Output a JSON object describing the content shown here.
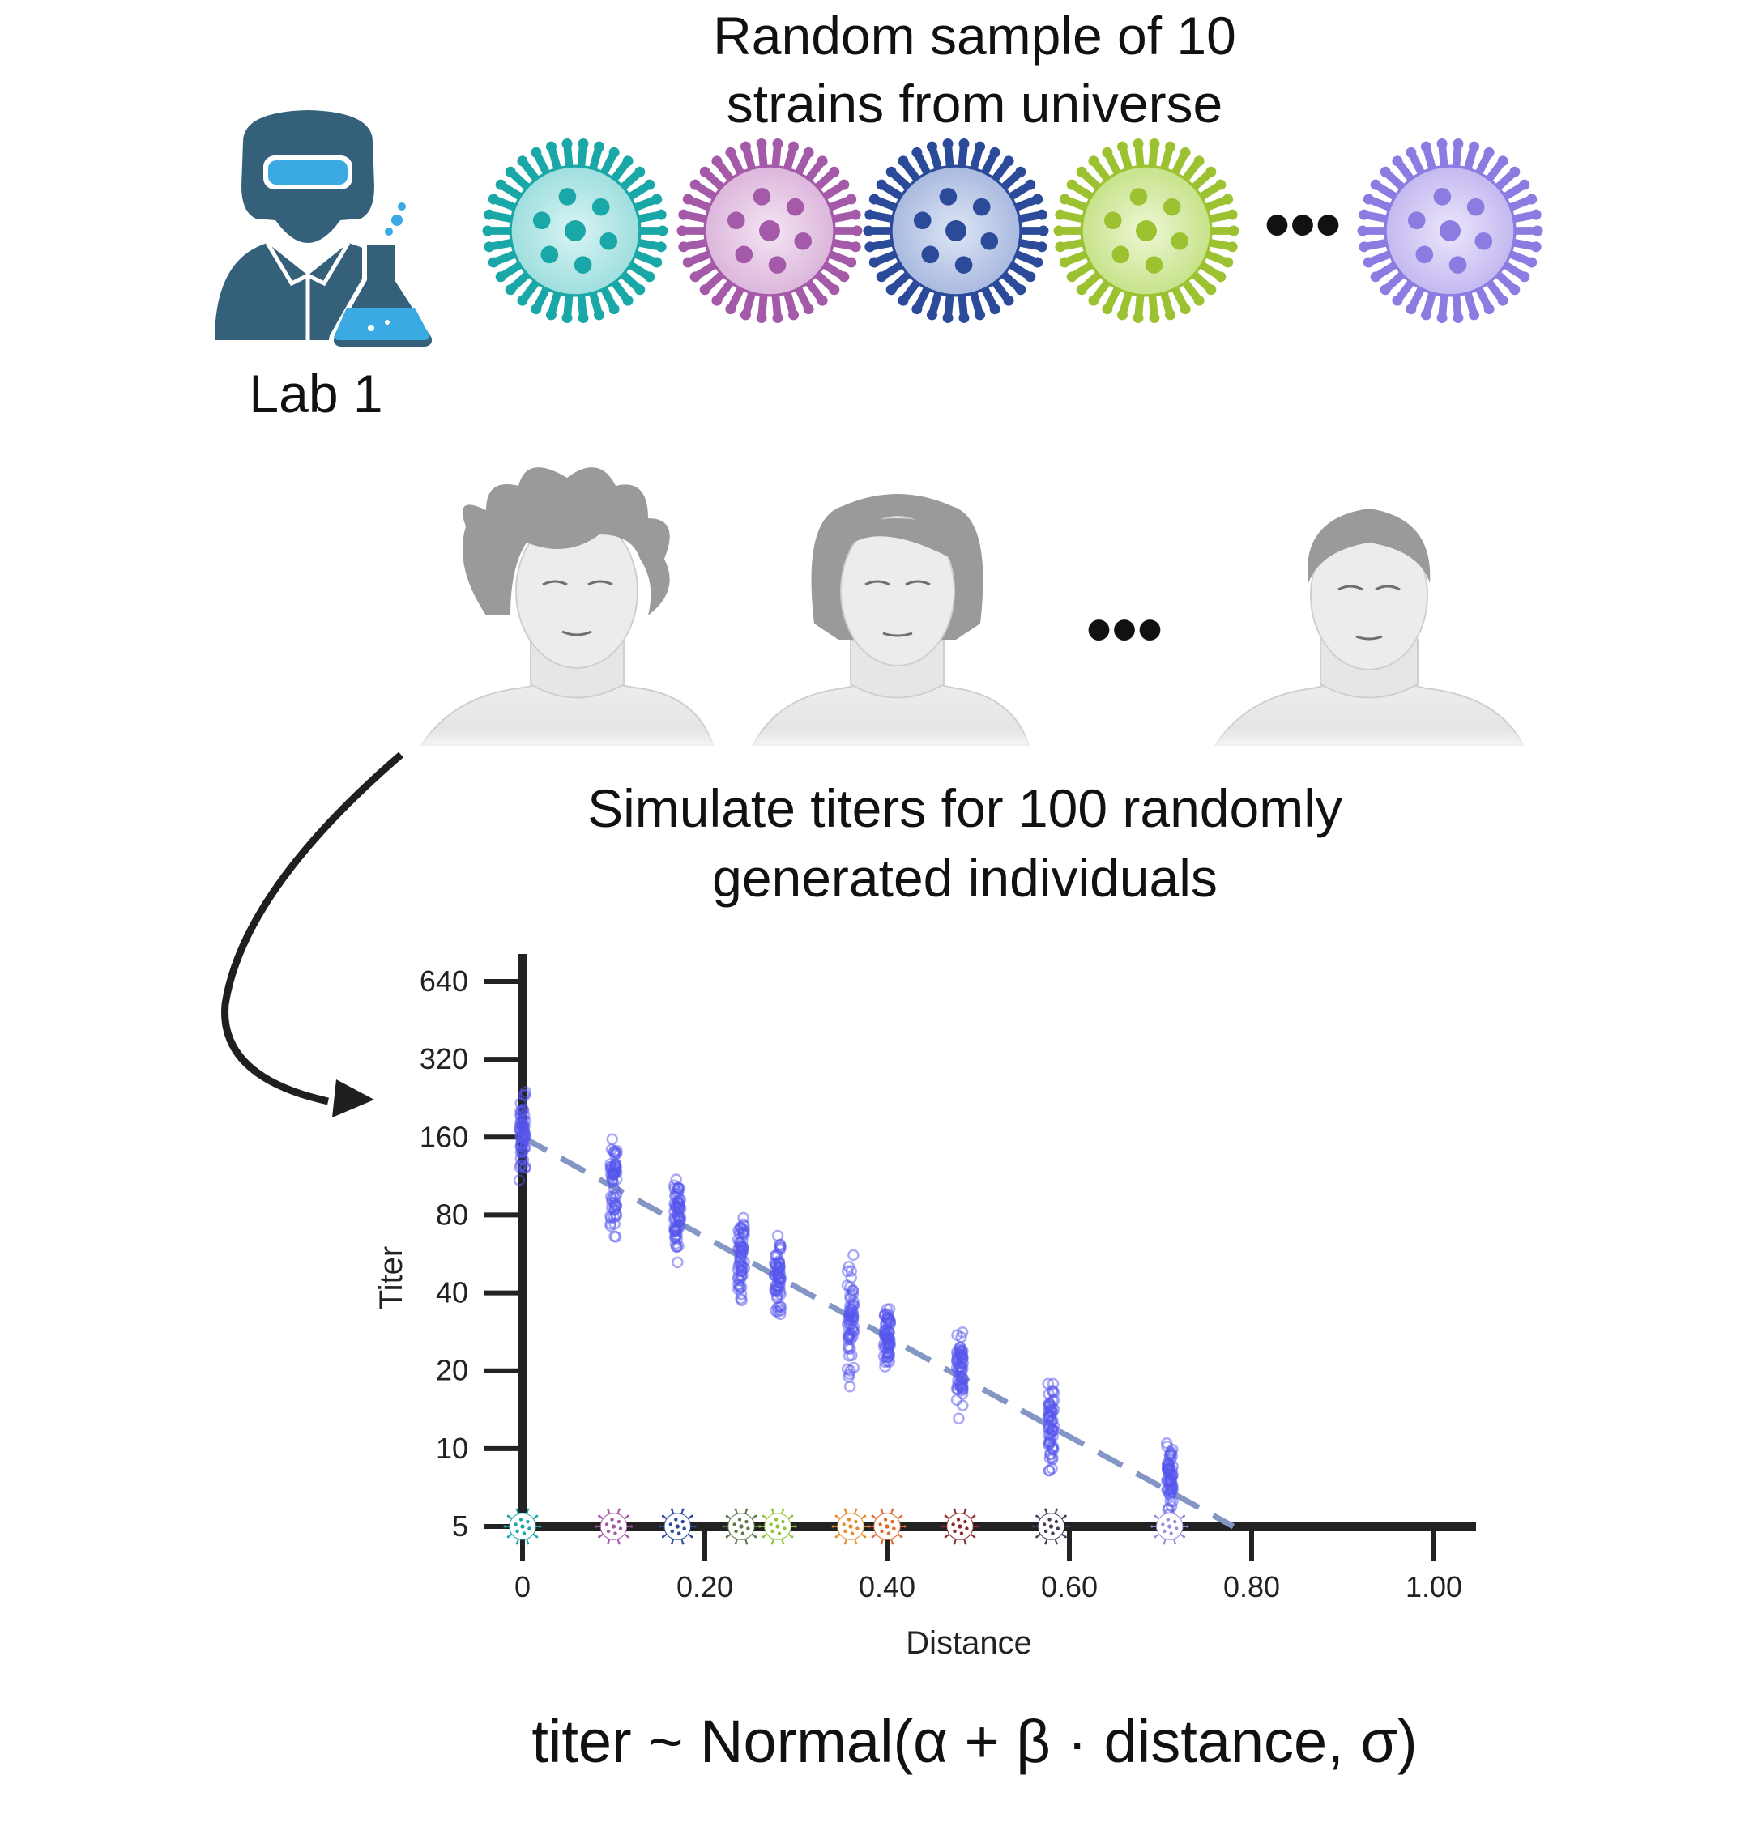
{
  "header": {
    "line1": "Random sample of 10",
    "line2": "strains from universe"
  },
  "lab": {
    "label": "Lab 1"
  },
  "ellipsis": "•••",
  "simulate": {
    "line1": "Simulate titers for 100 randomly",
    "line2": "generated individuals"
  },
  "formula": "titer ~ Normal(α + β · distance, σ)",
  "colors": {
    "virus_top": [
      "#1aa7a7",
      "#a45aa8",
      "#2b4a9a",
      "#9cc232",
      "#8a7ce0"
    ],
    "lab_icon": "#34607a",
    "points": "#5555ee",
    "trend": "#8496c4",
    "axis": "#222222"
  },
  "chart_data": {
    "type": "scatter",
    "xlabel": "Distance",
    "ylabel": "Titer",
    "y_log2": true,
    "xlim": [
      0,
      1.0
    ],
    "ylim": [
      5,
      640
    ],
    "x_ticks": [
      0,
      0.2,
      0.4,
      0.6,
      0.8,
      1.0
    ],
    "x_tick_labels": [
      "0",
      "0.20",
      "0.40",
      "0.60",
      "0.80",
      "1.00"
    ],
    "y_ticks": [
      5,
      10,
      20,
      40,
      80,
      160,
      320,
      640
    ],
    "y_tick_labels": [
      "5",
      "10",
      "20",
      "40",
      "80",
      "160",
      "320",
      "640"
    ],
    "strains": [
      {
        "distance": 0.0,
        "titer_min": 100,
        "titer_max": 260,
        "color": "#1aa7a7"
      },
      {
        "distance": 0.1,
        "titer_min": 62,
        "titer_max": 170,
        "color": "#a45aa8"
      },
      {
        "distance": 0.17,
        "titer_min": 48,
        "titer_max": 130,
        "color": "#2b4a9a"
      },
      {
        "distance": 0.24,
        "titer_min": 35,
        "titer_max": 90,
        "color": "#5a7a4a"
      },
      {
        "distance": 0.28,
        "titer_min": 28,
        "titer_max": 75,
        "color": "#8cc43a"
      },
      {
        "distance": 0.36,
        "titer_min": 15,
        "titer_max": 65,
        "color": "#e88a2a"
      },
      {
        "distance": 0.4,
        "titer_min": 17,
        "titer_max": 42,
        "color": "#e06a2a"
      },
      {
        "distance": 0.48,
        "titer_min": 12,
        "titer_max": 34,
        "color": "#8a2a2a"
      },
      {
        "distance": 0.58,
        "titer_min": 7,
        "titer_max": 22,
        "color": "#4a3a5a"
      },
      {
        "distance": 0.71,
        "titer_min": 5,
        "titer_max": 12,
        "color": "#9a8ae0"
      }
    ],
    "trend": {
      "x0": 0.0,
      "y0": 160,
      "x1": 0.78,
      "y1": 5
    }
  }
}
